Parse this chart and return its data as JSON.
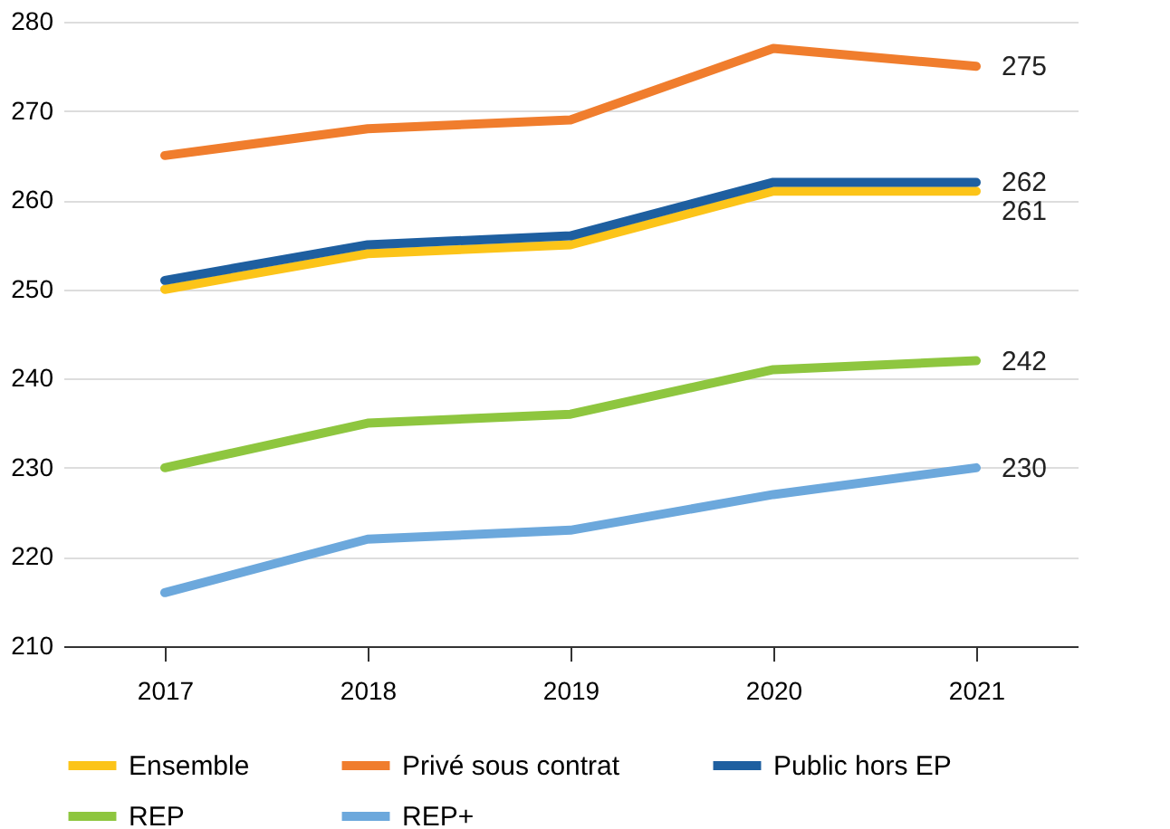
{
  "chart_data": {
    "type": "line",
    "categories": [
      "2017",
      "2018",
      "2019",
      "2020",
      "2021"
    ],
    "series": [
      {
        "name": "Ensemble",
        "color": "#fcc419",
        "values": [
          250,
          254,
          255,
          261,
          261
        ],
        "value_labels": [
          null,
          null,
          null,
          null,
          "261"
        ]
      },
      {
        "name": "Privé sous contrat",
        "color": "#f07d2d",
        "values": [
          265,
          268,
          269,
          277,
          275
        ],
        "value_labels": [
          null,
          null,
          null,
          null,
          "275"
        ]
      },
      {
        "name": "Public hors EP",
        "color": "#1e5fa0",
        "values": [
          251,
          255,
          256,
          262,
          262
        ],
        "value_labels": [
          null,
          null,
          null,
          null,
          "262"
        ]
      },
      {
        "name": "REP",
        "color": "#8ec63f",
        "values": [
          230,
          235,
          236,
          241,
          242
        ],
        "value_labels": [
          null,
          null,
          null,
          null,
          "242"
        ]
      },
      {
        "name": "REP+",
        "color": "#6ca8dc",
        "values": [
          216,
          222,
          223,
          227,
          230
        ],
        "value_labels": [
          null,
          null,
          null,
          null,
          "230"
        ]
      }
    ],
    "ylim": [
      210,
      280
    ],
    "yticks": [
      210,
      220,
      230,
      240,
      250,
      260,
      270,
      280
    ],
    "grid": "y",
    "legend": "bottom",
    "marker": "none",
    "line_style": "solid"
  }
}
